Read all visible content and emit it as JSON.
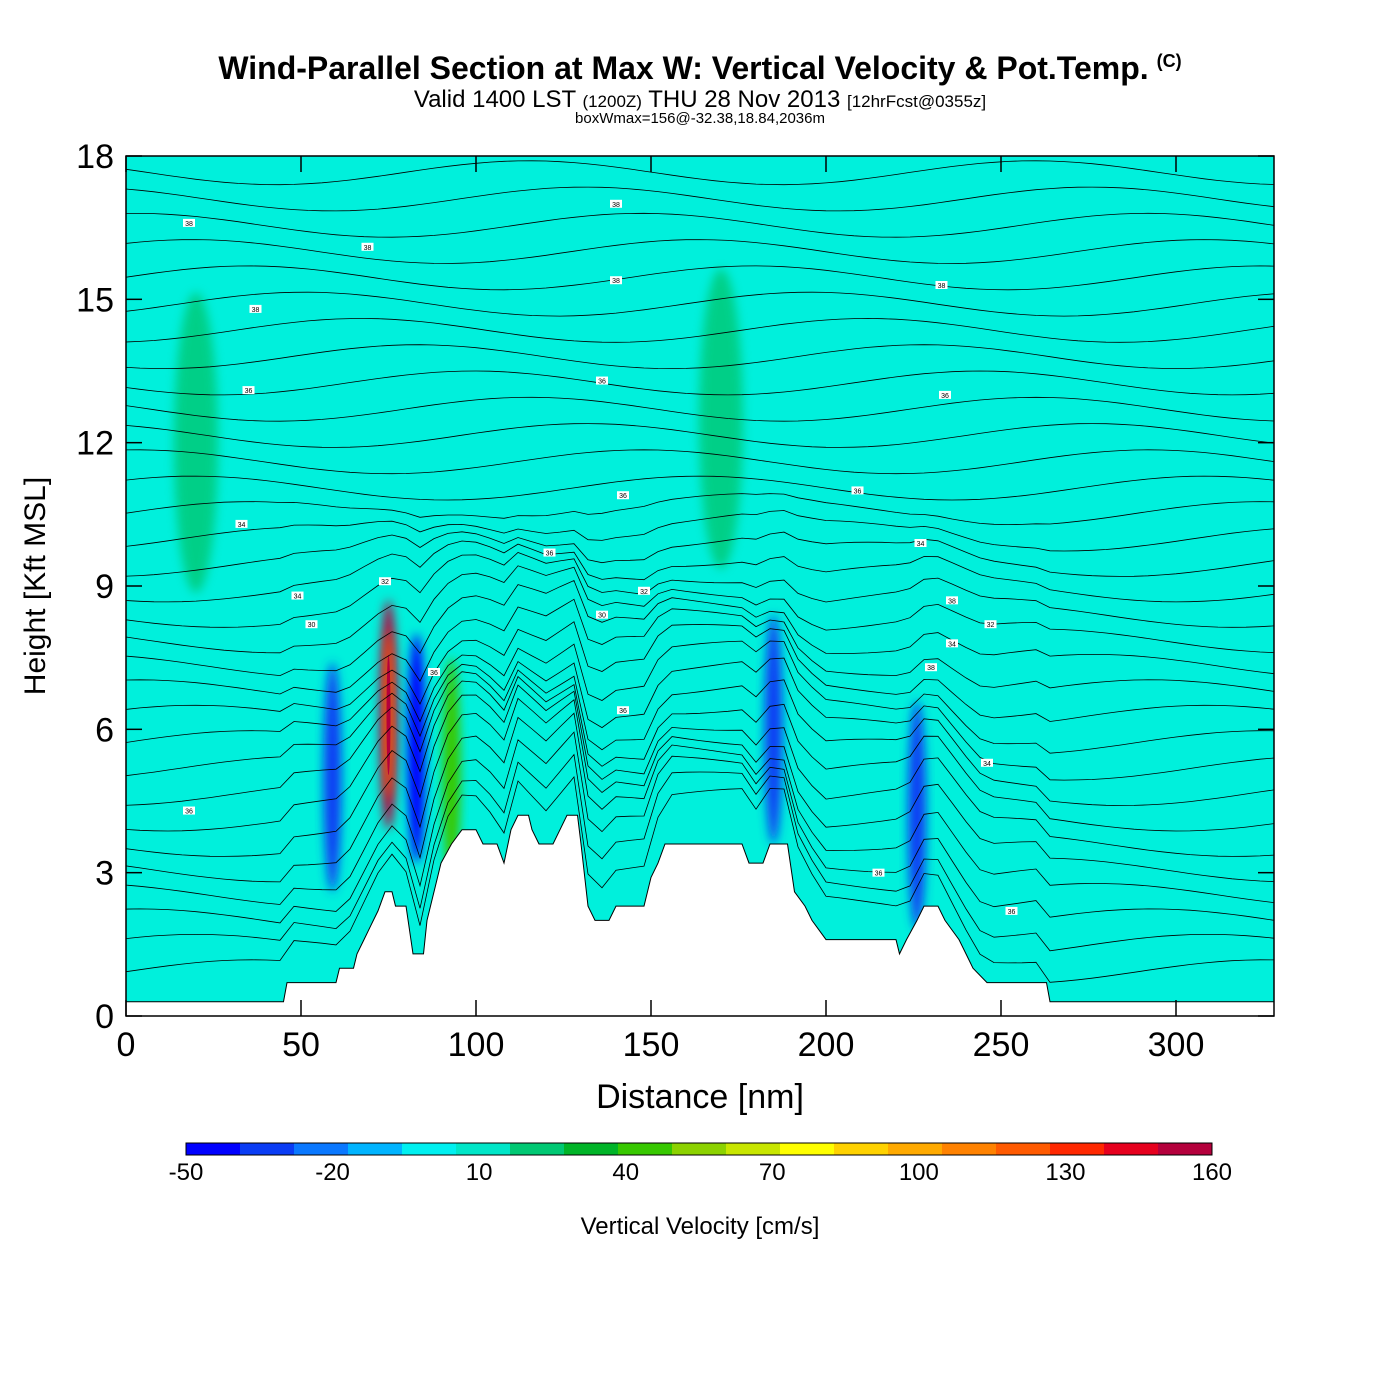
{
  "title": {
    "main": "Wind-Parallel Section at Max W: Vertical Velocity & Pot.Temp.",
    "copyright": "(C)",
    "valid_prefix": "Valid 1400 LST",
    "valid_utc": "(1200Z)",
    "valid_date": "THU 28 Nov 2013",
    "forecast": "[12hrFcst@0355z]",
    "subtitle": "boxWmax=156@-32.38,18.84,2036m"
  },
  "chart_data": {
    "type": "heatmap",
    "xlabel": "Distance [nm]",
    "ylabel": "Height [Kft MSL]",
    "xlim": [
      0,
      328
    ],
    "ylim": [
      0,
      18
    ],
    "x_ticks": [
      0,
      50,
      100,
      150,
      200,
      250,
      300
    ],
    "y_ticks": [
      0,
      3,
      6,
      9,
      12,
      15,
      18
    ],
    "colorbar": {
      "label": "Vertical Velocity [cm/s]",
      "min": -50,
      "max": 160,
      "step": 10,
      "tick_labels": [
        -50,
        -20,
        10,
        40,
        70,
        100,
        130,
        160
      ],
      "colors": [
        "#0000ff",
        "#0a3cf4",
        "#0a78ff",
        "#00b4ff",
        "#00f0f0",
        "#00e6c8",
        "#00c873",
        "#00b428",
        "#37c800",
        "#8cd200",
        "#c8e600",
        "#ffff00",
        "#ffd200",
        "#ffaa00",
        "#ff8200",
        "#ff5a00",
        "#ff2800",
        "#e6001e",
        "#b4003c"
      ]
    },
    "terrain_kft": [
      [
        0,
        0.3
      ],
      [
        45,
        0.3
      ],
      [
        46,
        0.7
      ],
      [
        60,
        0.7
      ],
      [
        61,
        1.0
      ],
      [
        65,
        1.0
      ],
      [
        66,
        1.3
      ],
      [
        68,
        1.6
      ],
      [
        70,
        1.9
      ],
      [
        72,
        2.2
      ],
      [
        74,
        2.6
      ],
      [
        76,
        2.6
      ],
      [
        77,
        2.3
      ],
      [
        80,
        2.3
      ],
      [
        82,
        1.3
      ],
      [
        85,
        1.3
      ],
      [
        86,
        2.0
      ],
      [
        88,
        2.6
      ],
      [
        90,
        3.2
      ],
      [
        93,
        3.6
      ],
      [
        96,
        3.9
      ],
      [
        100,
        3.9
      ],
      [
        102,
        3.6
      ],
      [
        106,
        3.6
      ],
      [
        108,
        3.2
      ],
      [
        110,
        3.9
      ],
      [
        112,
        4.2
      ],
      [
        115,
        4.2
      ],
      [
        116,
        3.9
      ],
      [
        118,
        3.6
      ],
      [
        122,
        3.6
      ],
      [
        124,
        3.9
      ],
      [
        126,
        4.2
      ],
      [
        129,
        4.2
      ],
      [
        130,
        3.6
      ],
      [
        132,
        2.3
      ],
      [
        134,
        2.0
      ],
      [
        138,
        2.0
      ],
      [
        140,
        2.3
      ],
      [
        148,
        2.3
      ],
      [
        150,
        2.9
      ],
      [
        152,
        3.2
      ],
      [
        154,
        3.6
      ],
      [
        176,
        3.6
      ],
      [
        178,
        3.2
      ],
      [
        182,
        3.2
      ],
      [
        184,
        3.6
      ],
      [
        189,
        3.6
      ],
      [
        191,
        2.6
      ],
      [
        194,
        2.3
      ],
      [
        196,
        2.0
      ],
      [
        200,
        1.6
      ],
      [
        220,
        1.6
      ],
      [
        221,
        1.3
      ],
      [
        223,
        1.6
      ],
      [
        226,
        2.0
      ],
      [
        228,
        2.3
      ],
      [
        232,
        2.3
      ],
      [
        234,
        2.0
      ],
      [
        238,
        1.6
      ],
      [
        240,
        1.3
      ],
      [
        242,
        1.0
      ],
      [
        246,
        0.7
      ],
      [
        263,
        0.7
      ],
      [
        264,
        0.3
      ],
      [
        328,
        0.3
      ]
    ],
    "series": [
      {
        "name": "30",
        "type": "contour_labels",
        "points": [
          [
            53,
            8.2
          ],
          [
            136,
            8.4
          ]
        ]
      },
      {
        "name": "32",
        "type": "contour_labels",
        "points": [
          [
            74,
            9.1
          ],
          [
            148,
            8.9
          ],
          [
            247,
            8.2
          ]
        ]
      },
      {
        "name": "34",
        "type": "contour_labels",
        "points": [
          [
            49,
            8.8
          ],
          [
            33,
            10.3
          ],
          [
            227,
            9.9
          ],
          [
            236,
            7.8
          ],
          [
            246,
            5.3
          ]
        ]
      },
      {
        "name": "36",
        "type": "contour_labels",
        "points": [
          [
            121,
            9.7
          ],
          [
            142,
            10.9
          ],
          [
            209,
            11.0
          ],
          [
            35,
            13.1
          ],
          [
            136,
            13.3
          ],
          [
            234,
            13.0
          ],
          [
            88,
            7.2
          ],
          [
            142,
            6.4
          ],
          [
            215,
            3.0
          ],
          [
            253,
            2.2
          ],
          [
            18,
            4.3
          ]
        ]
      },
      {
        "name": "38",
        "type": "contour_labels",
        "points": [
          [
            69,
            16.1
          ],
          [
            37,
            14.8
          ],
          [
            140,
            17.0
          ],
          [
            140,
            15.4
          ],
          [
            233,
            15.3
          ],
          [
            230,
            7.3
          ],
          [
            18,
            16.6
          ],
          [
            236,
            8.7
          ]
        ]
      }
    ],
    "velocity_features": [
      {
        "x": 75,
        "y": 6.3,
        "value": 156
      },
      {
        "x": 83,
        "y": 5.6,
        "value": -50
      },
      {
        "x": 59,
        "y": 5.0,
        "value": -40
      },
      {
        "x": 93,
        "y": 5.1,
        "value": 30
      },
      {
        "x": 226,
        "y": 4.2,
        "value": -40
      },
      {
        "x": 185,
        "y": 6.0,
        "value": -40
      },
      {
        "x": 20,
        "y": 12.0,
        "value": 15
      },
      {
        "x": 170,
        "y": 12.5,
        "value": 15
      }
    ]
  }
}
